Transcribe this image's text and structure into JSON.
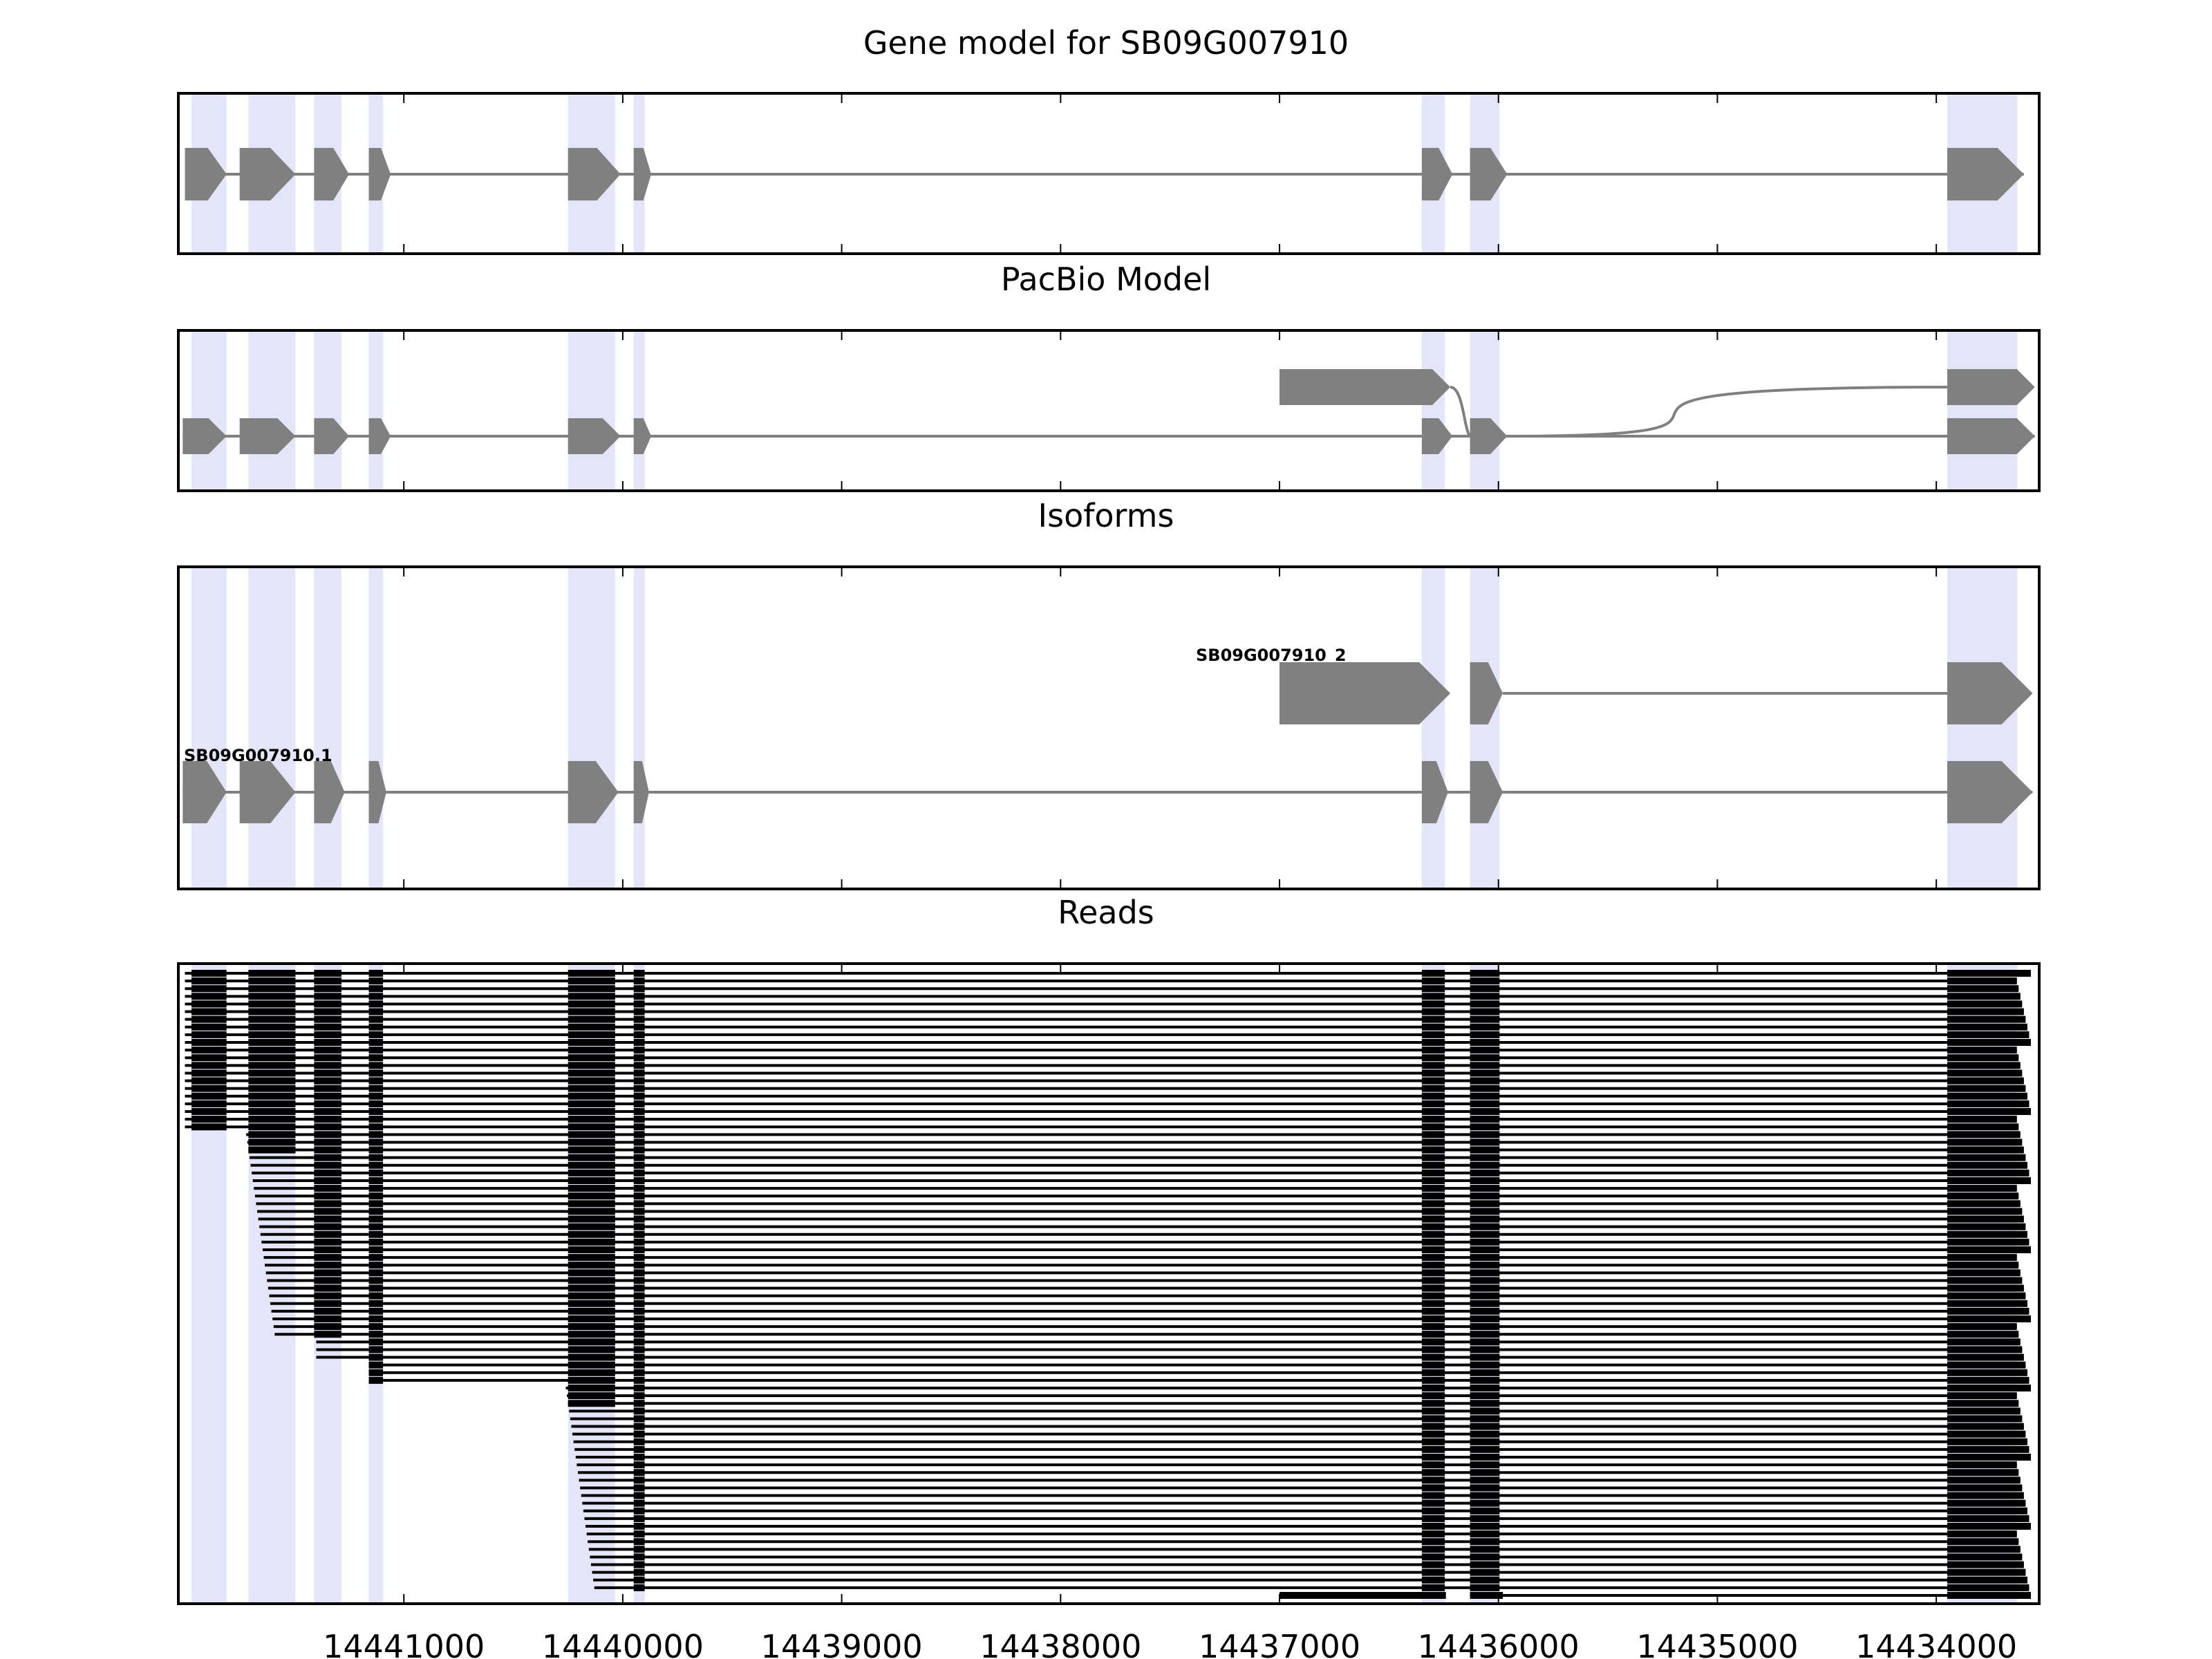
{
  "chart_data": {
    "type": "gene-structure",
    "x_axis": {
      "reversed": true,
      "xlim": [
        14442030,
        14433530
      ],
      "ticks": [
        14441000,
        14440000,
        14439000,
        14438000,
        14437000,
        14436000,
        14435000,
        14434000
      ],
      "tick_labels": [
        "14441000",
        "14440000",
        "14439000",
        "14438000",
        "14437000",
        "14436000",
        "14435000",
        "14434000"
      ]
    },
    "colors": {
      "exon": "#808080",
      "intron": "#808080",
      "shade": "#e5e5fa",
      "read": "#000000",
      "axes": "#000000"
    },
    "exon_regions": [
      [
        14441970,
        14441810
      ],
      [
        14441710,
        14441495
      ],
      [
        14441410,
        14441285
      ],
      [
        14441160,
        14441095
      ],
      [
        14440250,
        14440035
      ],
      [
        14439950,
        14439900
      ],
      [
        14436350,
        14436245
      ],
      [
        14436130,
        14435995
      ],
      [
        14433950,
        14433630
      ]
    ],
    "panels": [
      {
        "title": "Gene model for SB09G007910",
        "tracks": [
          {
            "label": "",
            "exons": [
              [
                14442000,
                14441810
              ],
              [
                14441750,
                14441495
              ],
              [
                14441410,
                14441250
              ],
              [
                14441160,
                14441060
              ],
              [
                14440250,
                14440010
              ],
              [
                14439950,
                14439870
              ],
              [
                14436350,
                14436210
              ],
              [
                14436130,
                14435960
              ],
              [
                14433950,
                14433600
              ]
            ]
          }
        ]
      },
      {
        "title": "PacBio Model",
        "tracks": [
          {
            "label": "",
            "exons": [
              [
                14437000,
                14436220
              ],
              [
                14433950,
                14433550
              ]
            ],
            "curve": true
          },
          {
            "label": "",
            "exons": [
              [
                14442010,
                14441810
              ],
              [
                14441750,
                14441495
              ],
              [
                14441410,
                14441250
              ],
              [
                14441160,
                14441060
              ],
              [
                14440250,
                14440010
              ],
              [
                14439950,
                14439870
              ],
              [
                14436350,
                14436210
              ],
              [
                14436130,
                14435960
              ],
              [
                14433950,
                14433550
              ]
            ]
          }
        ]
      },
      {
        "title": "Isoforms",
        "tracks": [
          {
            "label": "SB09G007910_2",
            "exons": [
              [
                14437000,
                14436220
              ],
              [
                14436130,
                14435980
              ],
              [
                14433950,
                14433560
              ]
            ]
          },
          {
            "label": "SB09G007910.1",
            "exons": [
              [
                14442010,
                14441810
              ],
              [
                14441750,
                14441495
              ],
              [
                14441410,
                14441270
              ],
              [
                14441160,
                14441080
              ],
              [
                14440250,
                14440020
              ],
              [
                14439950,
                14439880
              ],
              [
                14436350,
                14436230
              ],
              [
                14436130,
                14435980
              ],
              [
                14433950,
                14433560
              ]
            ]
          }
        ]
      },
      {
        "title": "Reads",
        "read_count": 82,
        "read_groups": [
          {
            "first_exon_start": 14442000,
            "count": 21
          },
          {
            "first_exon_start": 14441720,
            "count": 27
          },
          {
            "first_exon_start": 14441400,
            "count": 3
          },
          {
            "first_exon_start": 14441160,
            "count": 3
          },
          {
            "first_exon_start": 14440260,
            "count": 27
          },
          {
            "first_exon_start": 14437000,
            "count": 1
          }
        ]
      }
    ]
  }
}
